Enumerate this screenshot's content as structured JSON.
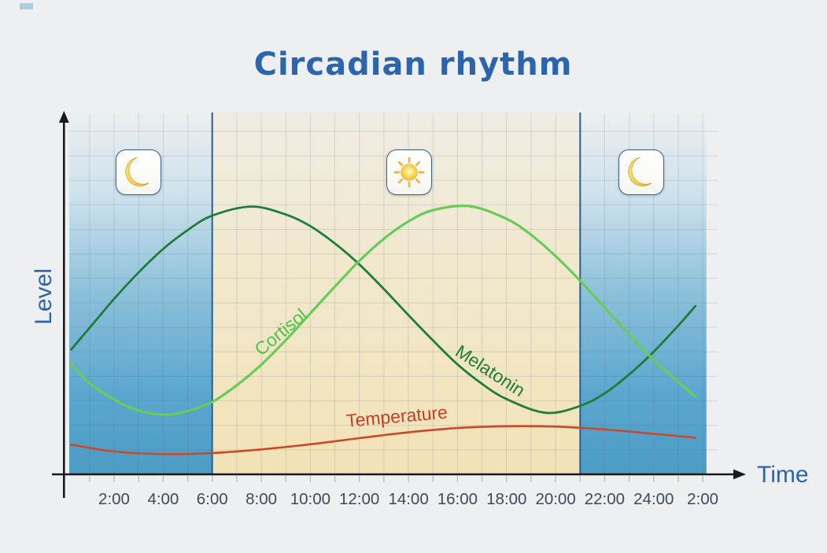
{
  "page": {
    "background": "#edeff0"
  },
  "chart_data": {
    "type": "line",
    "title": "Circadian rhythm",
    "xlabel": "Time",
    "ylabel": "Level",
    "x_unit": "hours",
    "x_range_hours": [
      0,
      26.15
    ],
    "y_range_level": [
      0,
      100
    ],
    "grid": true,
    "legend_position": "inline-curve-labels",
    "x_ticks": [
      {
        "hour": 2,
        "label": "2:00"
      },
      {
        "hour": 4,
        "label": "4:00"
      },
      {
        "hour": 6,
        "label": "6:00"
      },
      {
        "hour": 8,
        "label": "8:00"
      },
      {
        "hour": 10,
        "label": "10:00"
      },
      {
        "hour": 12,
        "label": "12:00"
      },
      {
        "hour": 14,
        "label": "14:00"
      },
      {
        "hour": 16,
        "label": "16:00"
      },
      {
        "hour": 18,
        "label": "18:00"
      },
      {
        "hour": 20,
        "label": "20:00"
      },
      {
        "hour": 22,
        "label": "22:00"
      },
      {
        "hour": 24,
        "label": "24:00"
      },
      {
        "hour": 26,
        "label": "2:00"
      }
    ],
    "day_band_hours": [
      6,
      21
    ],
    "night_bands_hours": [
      [
        0.17,
        6
      ],
      [
        21,
        26.15
      ]
    ],
    "band_boundary_lines_hours": [
      6,
      21
    ],
    "icons": [
      {
        "name": "moon-icon",
        "hour": 3
      },
      {
        "name": "sun-icon",
        "hour": 14
      },
      {
        "name": "moon-icon",
        "hour": 23.5
      }
    ],
    "series": [
      {
        "name": "Melatonin",
        "color": "#1e7d3a",
        "label_color": "#1e7d3a",
        "label_at": {
          "hour": 17.2,
          "level": 27.2
        },
        "label_angle_deg": 33,
        "points": [
          [
            0.25,
            34.5
          ],
          [
            1,
            40.5
          ],
          [
            2,
            48.5
          ],
          [
            3,
            55.8
          ],
          [
            4,
            62.3
          ],
          [
            5,
            67.5
          ],
          [
            6,
            71.5
          ],
          [
            7.6,
            74
          ],
          [
            9,
            71.8
          ],
          [
            10,
            68.6
          ],
          [
            11,
            63.8
          ],
          [
            12,
            58
          ],
          [
            13,
            51.2
          ],
          [
            14,
            44
          ],
          [
            15,
            37
          ],
          [
            16,
            30.4
          ],
          [
            17,
            25
          ],
          [
            18,
            20.8
          ],
          [
            19.6,
            17
          ],
          [
            21,
            18.9
          ],
          [
            22,
            22.4
          ],
          [
            23,
            27.6
          ],
          [
            24,
            33.9
          ],
          [
            25,
            41.1
          ],
          [
            25.7,
            46.5
          ]
        ]
      },
      {
        "name": "Cortisol",
        "color": "#68cc58",
        "label_color": "#4fc049",
        "label_at": {
          "hour": 8.95,
          "level": 38
        },
        "label_angle_deg": -40,
        "points": [
          [
            0.25,
            30.5
          ],
          [
            1,
            25.2
          ],
          [
            2,
            20.7
          ],
          [
            3,
            17.6
          ],
          [
            4.1,
            16.5
          ],
          [
            5,
            17.5
          ],
          [
            6,
            20
          ],
          [
            7,
            24.6
          ],
          [
            8,
            30.3
          ],
          [
            9,
            37.1
          ],
          [
            10,
            44.5
          ],
          [
            11,
            51.9
          ],
          [
            12,
            59
          ],
          [
            13,
            65.1
          ],
          [
            14,
            69.9
          ],
          [
            15,
            73
          ],
          [
            16.5,
            74.1
          ],
          [
            18,
            70.6
          ],
          [
            19,
            66.2
          ],
          [
            20,
            60.3
          ],
          [
            21,
            53.5
          ],
          [
            22,
            46.1
          ],
          [
            23,
            38.7
          ],
          [
            24,
            31.6
          ],
          [
            25,
            25.5
          ],
          [
            25.7,
            21.5
          ]
        ]
      },
      {
        "name": "Temperature",
        "color": "#c94a2b",
        "label_color": "#c43f28",
        "label_at": {
          "hour": 13.55,
          "level": 14.3
        },
        "label_angle_deg": -5,
        "points": [
          [
            0.25,
            8.2
          ],
          [
            2,
            6.3
          ],
          [
            4,
            5.6
          ],
          [
            6,
            5.9
          ],
          [
            8,
            6.9
          ],
          [
            10,
            8.3
          ],
          [
            12,
            10
          ],
          [
            14,
            11.6
          ],
          [
            16,
            12.8
          ],
          [
            18,
            13.3
          ],
          [
            20,
            13.2
          ],
          [
            22,
            12.4
          ],
          [
            24,
            11.2
          ],
          [
            25.7,
            10.1
          ]
        ]
      }
    ],
    "colors": {
      "night_top": "#eceff0",
      "night_bottom": "#4c9cc6",
      "day_top": "#efece2",
      "day_bottom": "#f2e2b6",
      "boundary_line": "#2c5d8f",
      "grid_line": "rgba(70,95,125,0.17)",
      "axis": "#1a1a1a",
      "tick_label": "#3f4a59",
      "title": "#2b65ae"
    }
  }
}
